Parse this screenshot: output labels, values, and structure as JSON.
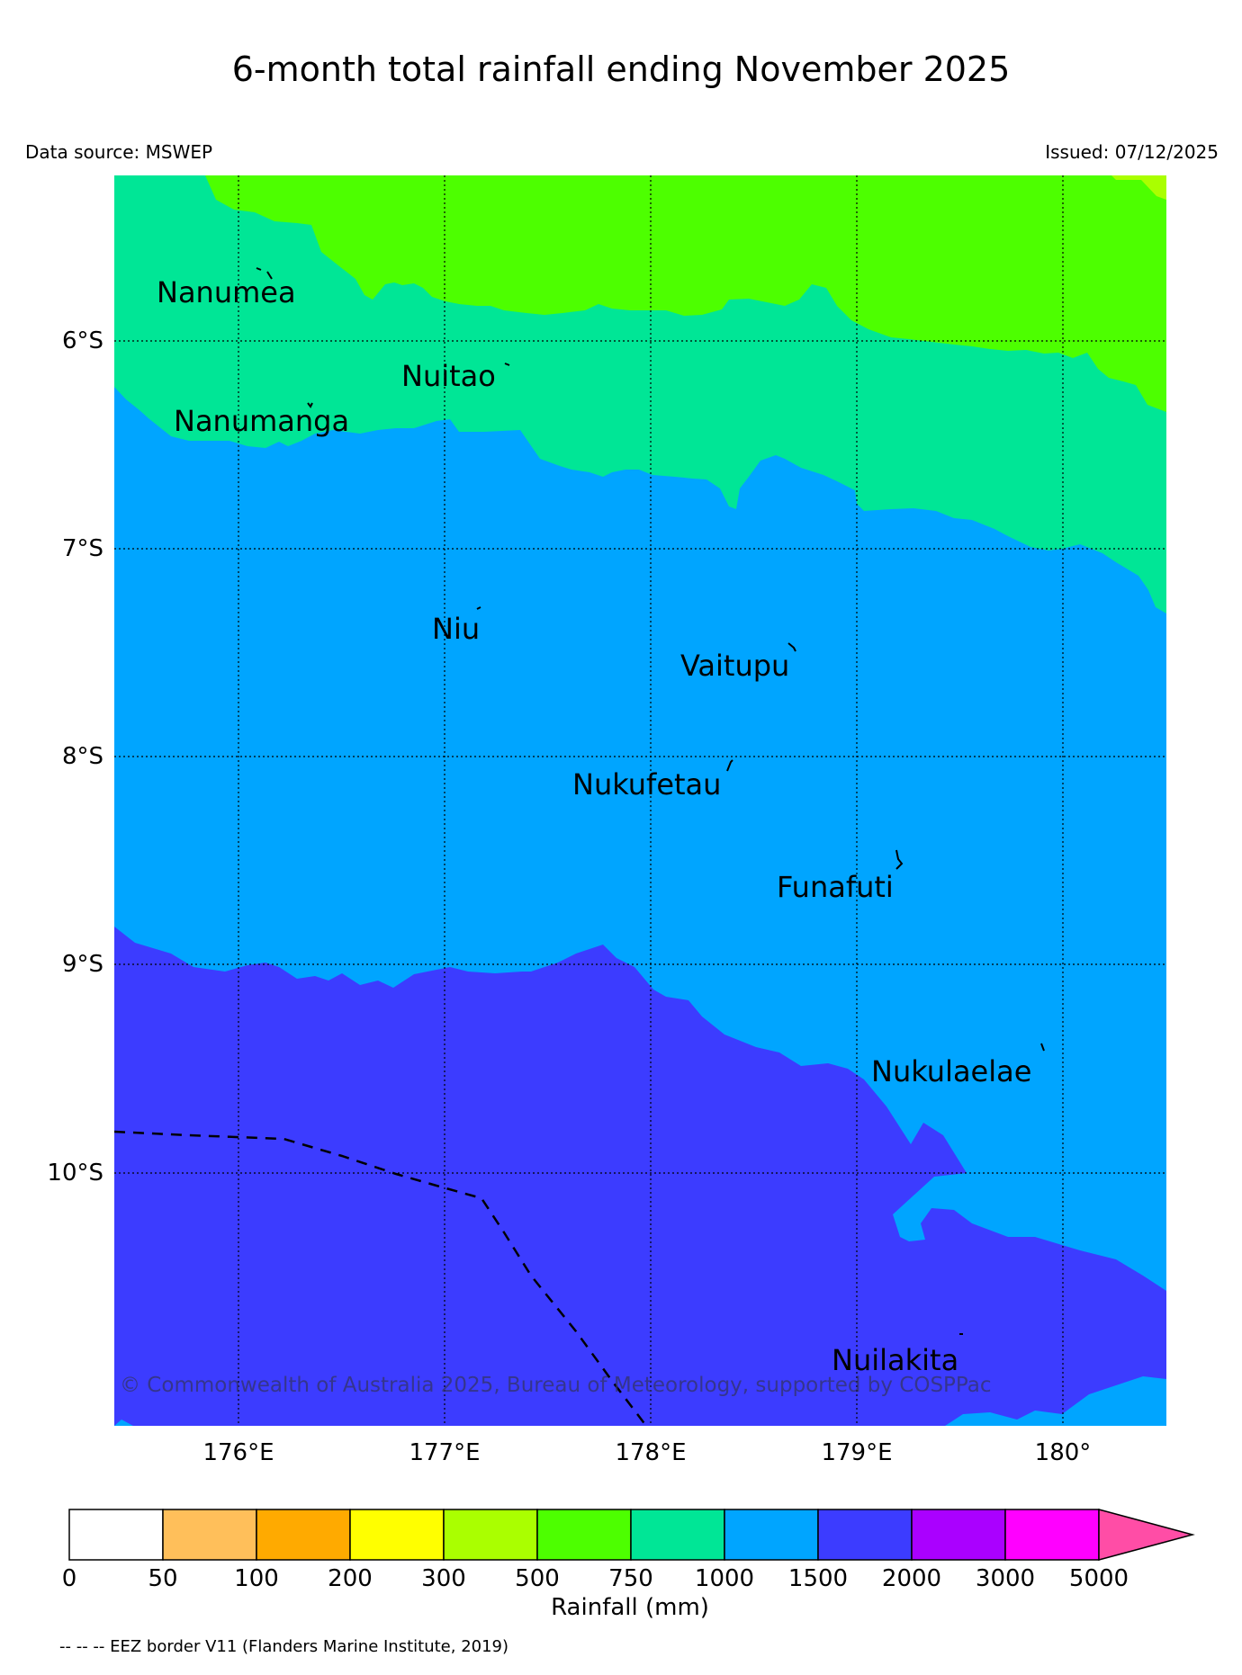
{
  "title": "6-month total rainfall ending November 2025",
  "data_source": "Data source: MSWEP",
  "issued": "Issued: 07/12/2025",
  "lat_labels": [
    "6°S",
    "7°S",
    "8°S",
    "9°S",
    "10°S"
  ],
  "lon_labels": [
    "176°E",
    "177°E",
    "178°E",
    "179°E",
    "180°"
  ],
  "places": {
    "nanumea": "Nanumea",
    "nuitao": "Nuitao",
    "nanumanga": "Nanumanga",
    "niu": "Niu",
    "vaitupu": "Vaitupu",
    "nukufetau": "Nukufetau",
    "funafuti": "Funafuti",
    "nukulaelae": "Nukulaelae",
    "nuilakita": "Nuilakita"
  },
  "copyright": "© Commonwealth of Australia 2025, Bureau of Meteorology, supported by COSPPac",
  "colorbar": {
    "ticks": [
      "0",
      "50",
      "100",
      "200",
      "300",
      "500",
      "750",
      "1000",
      "1500",
      "2000",
      "3000",
      "5000"
    ],
    "colors": [
      "#ffffff",
      "#ffbf5a",
      "#ffaa00",
      "#ffff00",
      "#aaff00",
      "#4dff00",
      "#00e696",
      "#00a5ff",
      "#3c3cff",
      "#aa00ff",
      "#ff00ff",
      "#ff4da6"
    ],
    "title": "Rainfall (mm)"
  },
  "footer": "-- -- -- EEZ border V11 (Flanders Marine Institute, 2019)"
}
